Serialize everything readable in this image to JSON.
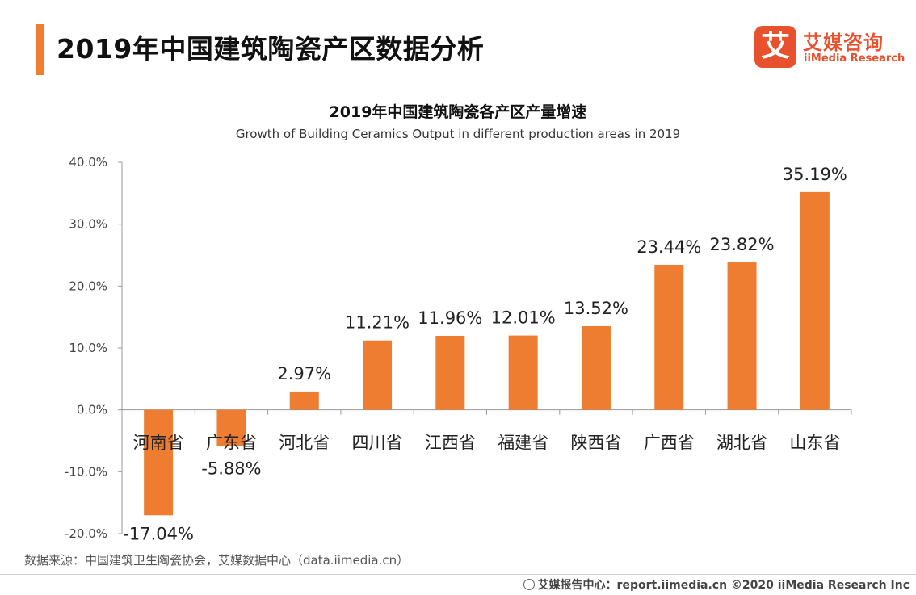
{
  "header": {
    "title": "2019年中国建筑陶瓷产区数据分析",
    "accent_color": "#ee7d31"
  },
  "logo": {
    "mark": "艾",
    "name_cn": "艾媒咨询",
    "name_en": "iiMedia Research",
    "color": "#e8512d"
  },
  "chart_data": {
    "type": "bar",
    "title": "2019年中国建筑陶瓷各产区产量增速",
    "subtitle": "Growth of  Building Ceramics Output in different production areas in 2019",
    "categories": [
      "河南省",
      "广东省",
      "河北省",
      "四川省",
      "江西省",
      "福建省",
      "陕西省",
      "广西省",
      "湖北省",
      "山东省"
    ],
    "values": [
      -17.04,
      -5.88,
      2.97,
      11.21,
      11.96,
      12.01,
      13.52,
      23.44,
      23.82,
      35.19
    ],
    "value_labels": [
      "-17.04%",
      "-5.88%",
      "2.97%",
      "11.21%",
      "11.96%",
      "12.01%",
      "13.52%",
      "23.44%",
      "23.82%",
      "35.19%"
    ],
    "ylim": [
      -20,
      40
    ],
    "yticks": [
      40,
      30,
      20,
      10,
      0,
      -10,
      -20
    ],
    "ytick_labels": [
      "40.0%",
      "30.0%",
      "20.0%",
      "10.0%",
      "0.0%",
      "-10.0%",
      "-20.0%"
    ],
    "bar_color": "#ee7d31",
    "grid": false,
    "legend": false
  },
  "source": "数据来源：中国建筑卫生陶瓷协会，艾媒数据中心（data.iimedia.cn）",
  "footer": "艾媒报告中心：report.iimedia.cn  ©2020  iiMedia Research  Inc"
}
